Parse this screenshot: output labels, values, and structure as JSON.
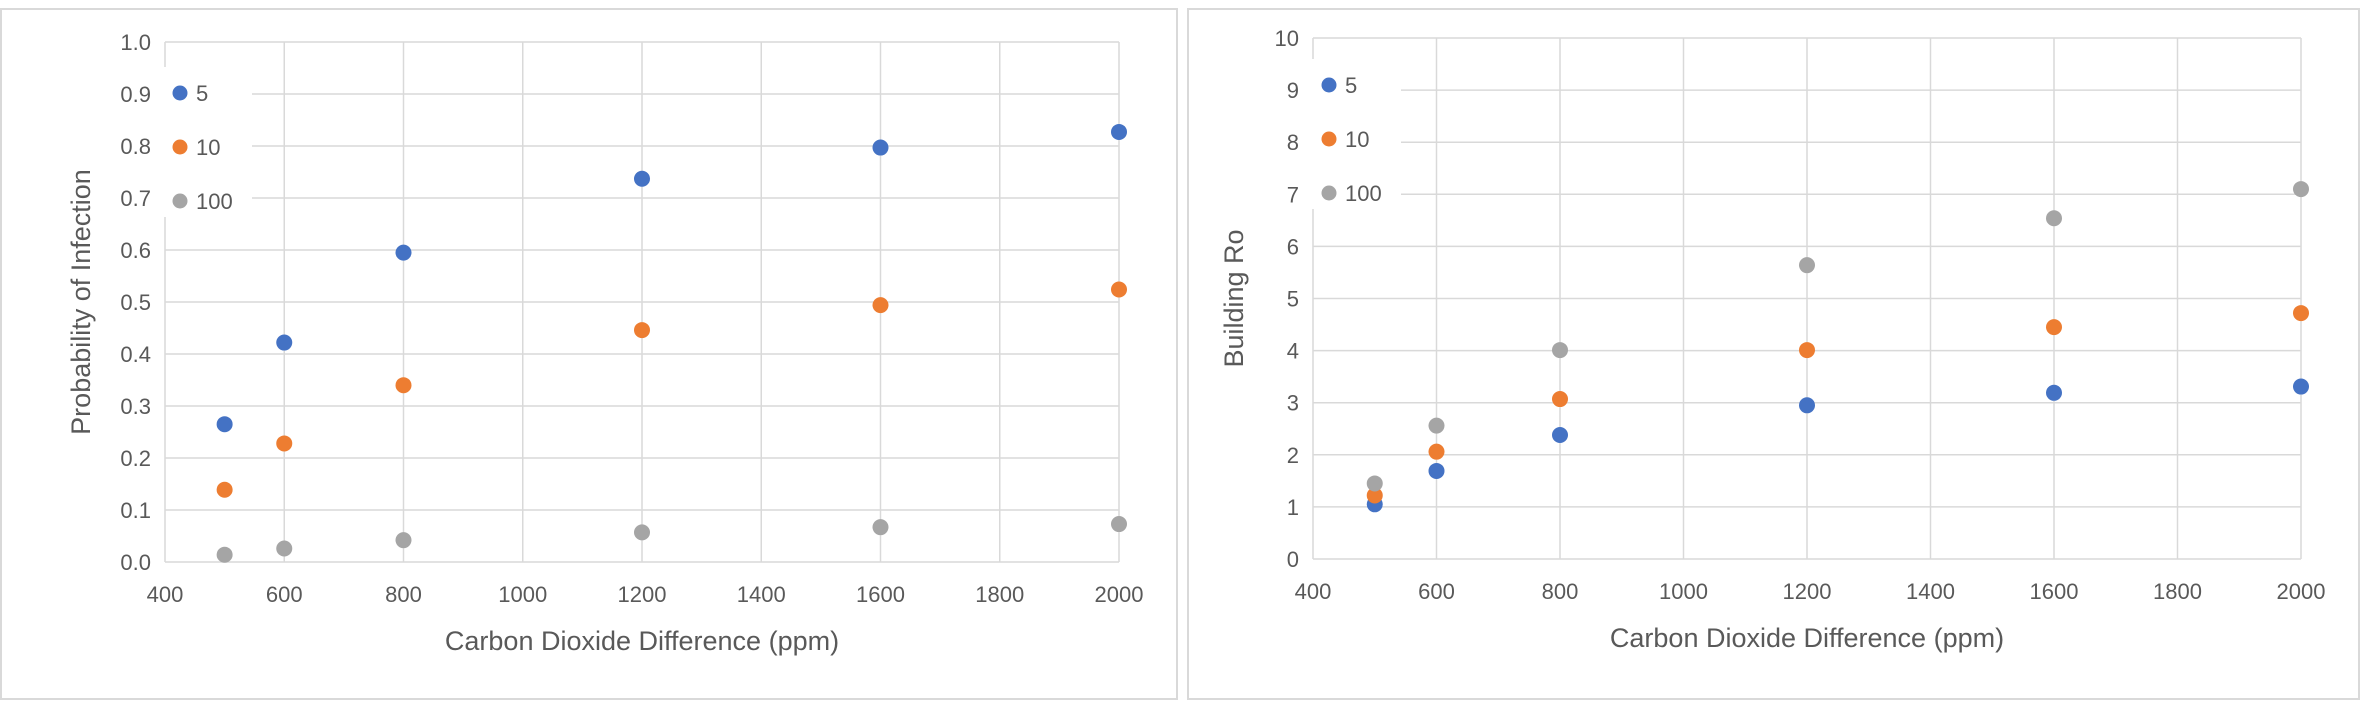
{
  "chart_data": [
    {
      "type": "scatter",
      "title": "",
      "xlabel": "Carbon Dioxide Difference (ppm)",
      "ylabel": "Probability of Infection",
      "xlim": [
        400,
        2000
      ],
      "ylim": [
        0.0,
        1.0
      ],
      "x_ticks": [
        "400",
        "600",
        "800",
        "1000",
        "1200",
        "1400",
        "1600",
        "1800",
        "2000"
      ],
      "y_ticks": [
        "0.0",
        "0.1",
        "0.2",
        "0.3",
        "0.4",
        "0.5",
        "0.6",
        "0.7",
        "0.8",
        "0.9",
        "1.0"
      ],
      "grid": true,
      "legend_position": "top-left",
      "x": [
        500,
        600,
        800,
        1200,
        1600,
        2000
      ],
      "series": [
        {
          "name": "5",
          "color": "#4472c4",
          "values": [
            0.265,
            0.422,
            0.595,
            0.737,
            0.797,
            0.827
          ]
        },
        {
          "name": "10",
          "color": "#ed7d31",
          "values": [
            0.139,
            0.228,
            0.34,
            0.446,
            0.494,
            0.524
          ]
        },
        {
          "name": "100",
          "color": "#a5a5a5",
          "values": [
            0.014,
            0.026,
            0.042,
            0.057,
            0.067,
            0.073
          ]
        }
      ]
    },
    {
      "type": "scatter",
      "title": "",
      "xlabel": "Carbon Dioxide Difference (ppm)",
      "ylabel": "Building Ro",
      "xlim": [
        400,
        2000
      ],
      "ylim": [
        0,
        10
      ],
      "x_ticks": [
        "400",
        "600",
        "800",
        "1000",
        "1200",
        "1400",
        "1600",
        "1800",
        "2000"
      ],
      "y_ticks": [
        "0",
        "1",
        "2",
        "3",
        "4",
        "5",
        "6",
        "7",
        "8",
        "9",
        "10"
      ],
      "grid": true,
      "legend_position": "top-left",
      "x": [
        500,
        600,
        800,
        1200,
        1600,
        2000
      ],
      "series": [
        {
          "name": "5",
          "color": "#4472c4",
          "values": [
            1.05,
            1.69,
            2.38,
            2.95,
            3.19,
            3.31
          ]
        },
        {
          "name": "10",
          "color": "#ed7d31",
          "values": [
            1.22,
            2.06,
            3.07,
            4.01,
            4.45,
            4.72
          ]
        },
        {
          "name": "100",
          "color": "#a5a5a5",
          "values": [
            1.45,
            2.56,
            4.01,
            5.64,
            6.54,
            7.1
          ]
        }
      ]
    }
  ]
}
